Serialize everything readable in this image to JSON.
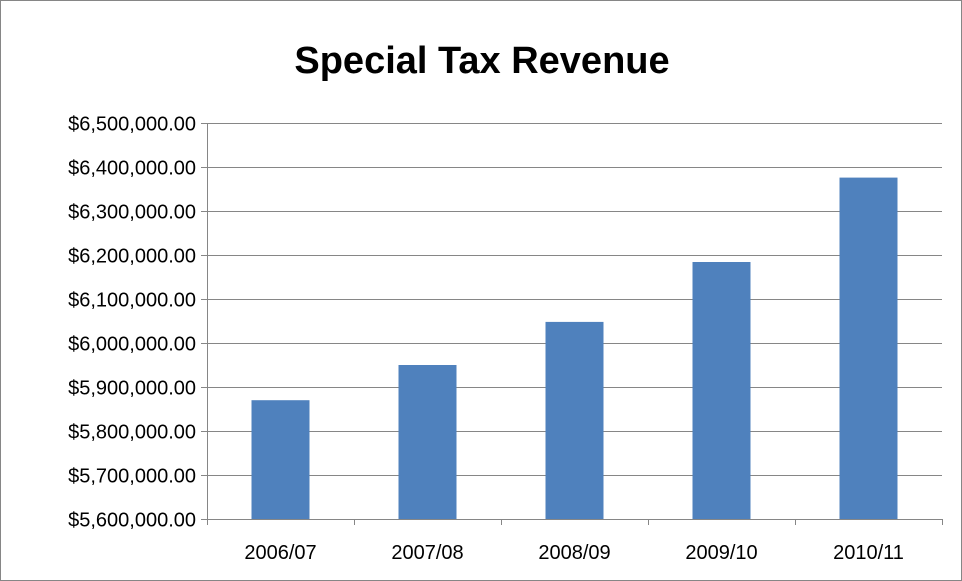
{
  "chart_data": {
    "type": "bar",
    "title": "Special Tax Revenue",
    "xlabel": "",
    "ylabel": "",
    "categories": [
      "2006/07",
      "2007/08",
      "2008/09",
      "2009/10",
      "2010/11"
    ],
    "values": [
      5870000,
      5950000,
      6048000,
      6184000,
      6376000
    ],
    "ylim": [
      5600000,
      6500000
    ],
    "ytick_step": 100000,
    "ytick_labels": [
      "$5,600,000.00",
      "$5,700,000.00",
      "$5,800,000.00",
      "$5,900,000.00",
      "$6,000,000.00",
      "$6,100,000.00",
      "$6,200,000.00",
      "$6,300,000.00",
      "$6,400,000.00",
      "$6,500,000.00"
    ],
    "grid": true,
    "legend": "none",
    "bar_color": "#4F81BD",
    "grid_color": "#868686"
  }
}
